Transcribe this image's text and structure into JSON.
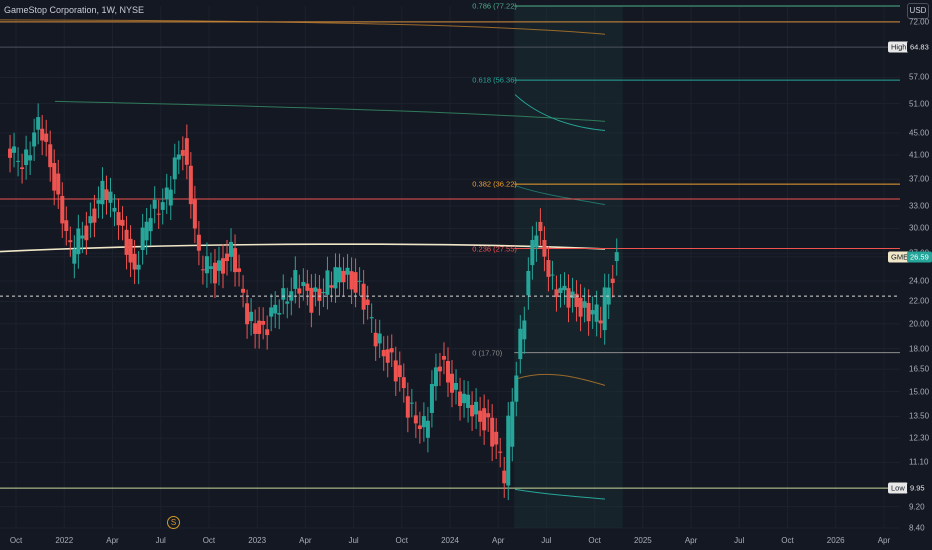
{
  "header": {
    "title": "GameStop Corporation, 1W, NYSE",
    "currency": "USD"
  },
  "colors": {
    "background": "#141823",
    "up": "#26a69a",
    "down": "#ef5350",
    "grid": "#1f2430",
    "accent": "#f0e7c8"
  },
  "icons": {
    "earnings": "dollar-circle-icon"
  },
  "earnings_marker": "S",
  "chart_data": {
    "type": "candlestick",
    "ylim": [
      8.4,
      77.22
    ],
    "yscale": "log",
    "y_ticks": [
      "72.00",
      "64.83",
      "57.00",
      "51.00",
      "45.00",
      "41.00",
      "37.00",
      "33.00",
      "30.00",
      "27.00",
      "26.59",
      "24.00",
      "22.00",
      "20.00",
      "18.00",
      "16.50",
      "15.00",
      "13.50",
      "12.30",
      "11.10",
      "9.95",
      "9.20",
      "8.40"
    ],
    "x_ticks": [
      "Oct",
      "2022",
      "Apr",
      "Jul",
      "Oct",
      "2023",
      "Apr",
      "Jul",
      "Oct",
      "2024",
      "Apr",
      "Jul",
      "Oct",
      "2025",
      "Apr",
      "Jul",
      "Oct",
      "2026",
      "Apr"
    ],
    "x_ticks_timeline": [
      "2021-10",
      "2022-01",
      "2022-04",
      "2022-07",
      "2022-10",
      "2023-01",
      "2023-04",
      "2023-07",
      "2023-10",
      "2024-01",
      "2024-04",
      "2024-07",
      "2024-10",
      "2025-01",
      "2025-04",
      "2025-07",
      "2025-10",
      "2026-01",
      "2026-04"
    ],
    "series": [
      {
        "name": "GME",
        "points": [
          [
            "2021-10",
            40.5
          ],
          [
            "2021-11",
            46
          ],
          [
            "2021-12",
            37
          ],
          [
            "2022-01",
            27
          ],
          [
            "2022-02",
            30
          ],
          [
            "2022-03",
            35
          ],
          [
            "2022-04",
            32
          ],
          [
            "2022-05",
            24
          ],
          [
            "2022-06",
            33
          ],
          [
            "2022-07",
            34
          ],
          [
            "2022-08",
            43
          ],
          [
            "2022-09",
            26
          ],
          [
            "2022-10",
            25
          ],
          [
            "2022-11",
            27
          ],
          [
            "2022-12",
            21
          ],
          [
            "2023-01",
            19
          ],
          [
            "2023-02",
            22
          ],
          [
            "2023-03",
            24
          ],
          [
            "2023-04",
            22
          ],
          [
            "2023-05",
            24
          ],
          [
            "2023-06",
            25
          ],
          [
            "2023-07",
            23
          ],
          [
            "2023-08",
            19
          ],
          [
            "2023-09",
            17
          ],
          [
            "2023-10",
            14
          ],
          [
            "2023-11",
            13
          ],
          [
            "2023-12",
            17
          ],
          [
            "2024-01",
            15
          ],
          [
            "2024-02",
            14
          ],
          [
            "2024-03",
            13
          ],
          [
            "2024-04",
            10.5
          ],
          [
            "2024-05",
            19
          ],
          [
            "2024-06",
            30
          ],
          [
            "2024-07",
            24
          ],
          [
            "2024-08",
            22
          ],
          [
            "2024-09",
            21.5
          ],
          [
            "2024-10",
            20.5
          ],
          [
            "2024-11",
            26.59
          ]
        ]
      }
    ],
    "levels": [
      {
        "label": "High",
        "value": "64.83",
        "price": 64.83
      },
      {
        "label": "GME",
        "value": "26.59",
        "price": 26.59
      },
      {
        "label": "Low",
        "value": "9.95",
        "price": 9.95
      }
    ],
    "fibonacci": [
      {
        "label": "0.786 (77.22)",
        "price": 77.22,
        "color": "#4caf8a"
      },
      {
        "label": "0.618 (56.36)",
        "price": 56.36,
        "color": "#26a69a"
      },
      {
        "label": "0.382 (36.22)",
        "price": 36.22,
        "color": "#f0a030"
      },
      {
        "label": "0.236 (27.55)",
        "price": 27.55,
        "color": "#ef5350"
      },
      {
        "label": "0 (17.70)",
        "price": 17.7,
        "color": "#8c8c8c"
      }
    ]
  }
}
